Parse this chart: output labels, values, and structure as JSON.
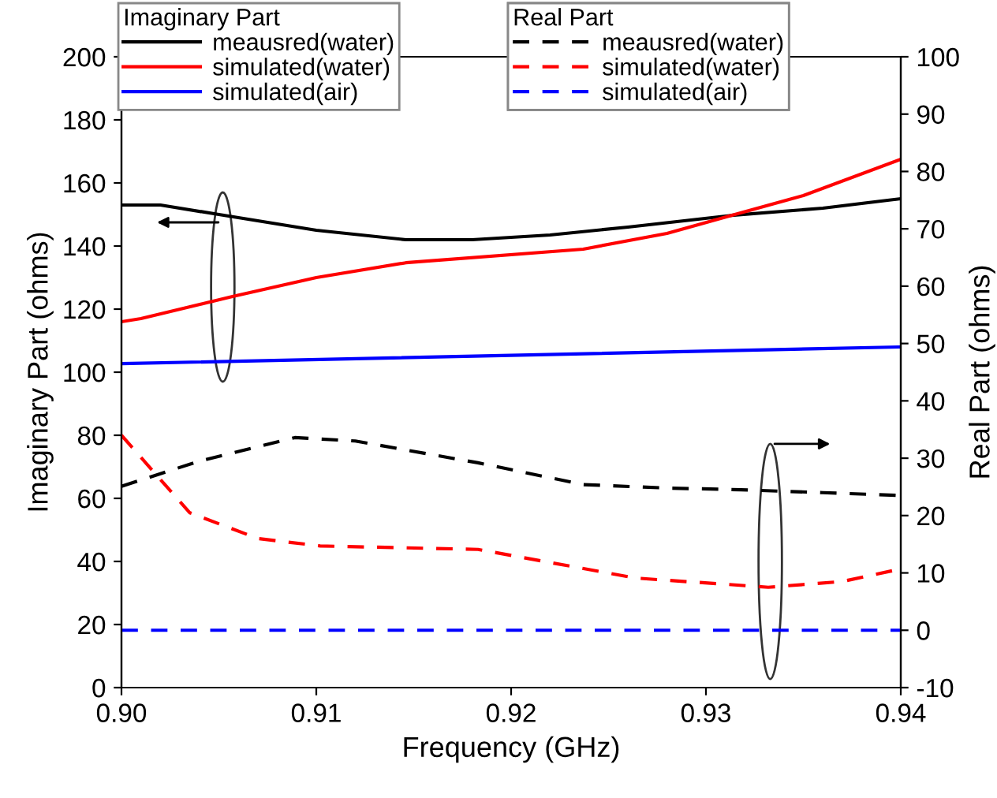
{
  "chart_data": {
    "type": "line",
    "xlabel": "Frequency (GHz)",
    "ylabel": "Imaginary Part (ohms)",
    "y2label": "Real Part (ohms)",
    "legend_title": [
      "Imaginary Part",
      "Real Part"
    ],
    "xlim": [
      0.9,
      0.94
    ],
    "xticks": [
      {
        "value": 0.9,
        "label": "0.90"
      },
      0.91,
      0.92,
      0.93,
      {
        "value": 0.94,
        "label": "0.94"
      }
    ],
    "ylim": [
      0,
      200
    ],
    "yticks": [
      0,
      20,
      40,
      60,
      80,
      100,
      120,
      140,
      160,
      180,
      200
    ],
    "y2lim": [
      -10,
      100
    ],
    "y2ticks": [
      -10,
      0,
      10,
      20,
      30,
      40,
      50,
      60,
      70,
      80,
      90,
      100
    ],
    "grid": false,
    "legend": "top",
    "marker": "none",
    "series": [
      {
        "name": "meausred(water)",
        "color": "#000000",
        "line_style": "solid",
        "x": [
          0.9,
          0.902,
          0.905,
          0.91,
          0.9146,
          0.918,
          0.922,
          0.926,
          0.9313,
          0.936,
          0.94
        ],
        "values": [
          153,
          153,
          150,
          145,
          142,
          142,
          143.5,
          146,
          149.7,
          152,
          155
        ]
      },
      {
        "name": "simulated(water)",
        "color": "#ff0000",
        "line_style": "solid",
        "x": [
          0.9,
          0.901,
          0.9057,
          0.91,
          0.9146,
          0.9237,
          0.928,
          0.9313,
          0.935,
          0.94
        ],
        "values": [
          116,
          117,
          124,
          130,
          134.7,
          139,
          144,
          149.7,
          156,
          167.5
        ]
      },
      {
        "name": "simulated(air)",
        "color": "#0000ff",
        "line_style": "solid",
        "x": [
          0.9,
          0.94
        ],
        "values": [
          102.7,
          108
        ]
      },
      {
        "name": "meausred(water)",
        "color": "#000000",
        "line_style": "dashed",
        "axis": "y2",
        "x": [
          0.9,
          0.904,
          0.9089,
          0.912,
          0.9183,
          0.9237,
          0.928,
          0.9318,
          0.936,
          0.94
        ],
        "values": [
          25.1,
          29.5,
          33.6,
          33,
          29.2,
          25.4,
          24.8,
          24.5,
          24,
          23.5
        ]
      },
      {
        "name": "simulated(water)",
        "color": "#ff0000",
        "line_style": "dashed",
        "axis": "y2",
        "x": [
          0.9,
          0.9035,
          0.907,
          0.9102,
          0.9183,
          0.9264,
          0.9332,
          0.937,
          0.94
        ],
        "values": [
          34,
          20.5,
          16,
          14.7,
          14.1,
          9.1,
          7.5,
          8.5,
          10.7
        ]
      },
      {
        "name": "simulated(air)",
        "color": "#0000ff",
        "line_style": "dashed",
        "axis": "y2",
        "x": [
          0.9,
          0.94
        ],
        "values": [
          0,
          0
        ]
      }
    ]
  }
}
